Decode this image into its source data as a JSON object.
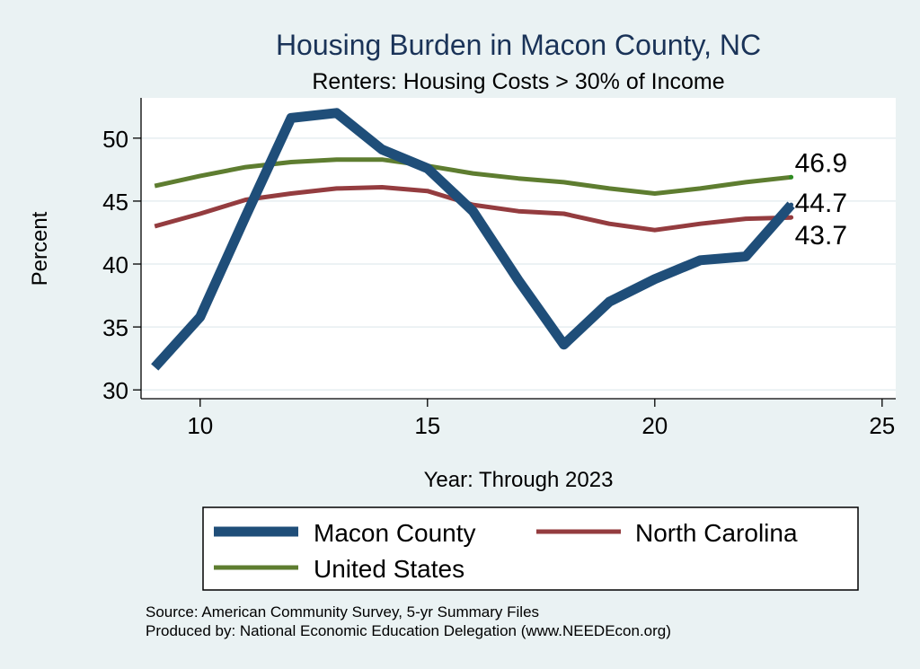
{
  "chart_data": {
    "type": "line",
    "title": "Housing Burden in Macon County, NC",
    "subtitle": "Renters: Housing Costs > 30% of Income",
    "xlabel": "Year: Through 2023",
    "ylabel": "Percent",
    "xlim": [
      8.7,
      25.3
    ],
    "ylim": [
      29.3,
      53.2
    ],
    "xticks": [
      10,
      15,
      20,
      25
    ],
    "yticks": [
      30,
      35,
      40,
      45,
      50
    ],
    "grid": true,
    "legend_position": "bottom",
    "x": [
      9,
      10,
      11,
      12,
      13,
      14,
      15,
      16,
      17,
      18,
      19,
      20,
      21,
      22,
      23
    ],
    "series": [
      {
        "name": "Macon County",
        "color": "#1f4e79",
        "values": [
          31.8,
          35.8,
          43.8,
          51.6,
          52.0,
          49.1,
          47.6,
          44.2,
          38.7,
          33.6,
          37.0,
          38.8,
          40.3,
          40.6,
          44.7
        ],
        "end_label": "44.7"
      },
      {
        "name": "North Carolina",
        "color": "#943c3f",
        "values": [
          43.0,
          44.0,
          45.1,
          45.6,
          46.0,
          46.1,
          45.8,
          44.7,
          44.2,
          44.0,
          43.2,
          42.7,
          43.2,
          43.6,
          43.7
        ],
        "end_label": "43.7"
      },
      {
        "name": "United States",
        "color": "#5e7d30",
        "values": [
          46.2,
          47.0,
          47.7,
          48.1,
          48.3,
          48.3,
          47.8,
          47.2,
          46.8,
          46.5,
          46.0,
          45.6,
          46.0,
          46.5,
          46.9
        ],
        "end_label": "46.9"
      }
    ],
    "source_note": "Source: American Community Survey, 5-yr Summary Files",
    "producer_note": "Produced by: National Economic Education Delegation (www.NEEDEcon.org)"
  }
}
